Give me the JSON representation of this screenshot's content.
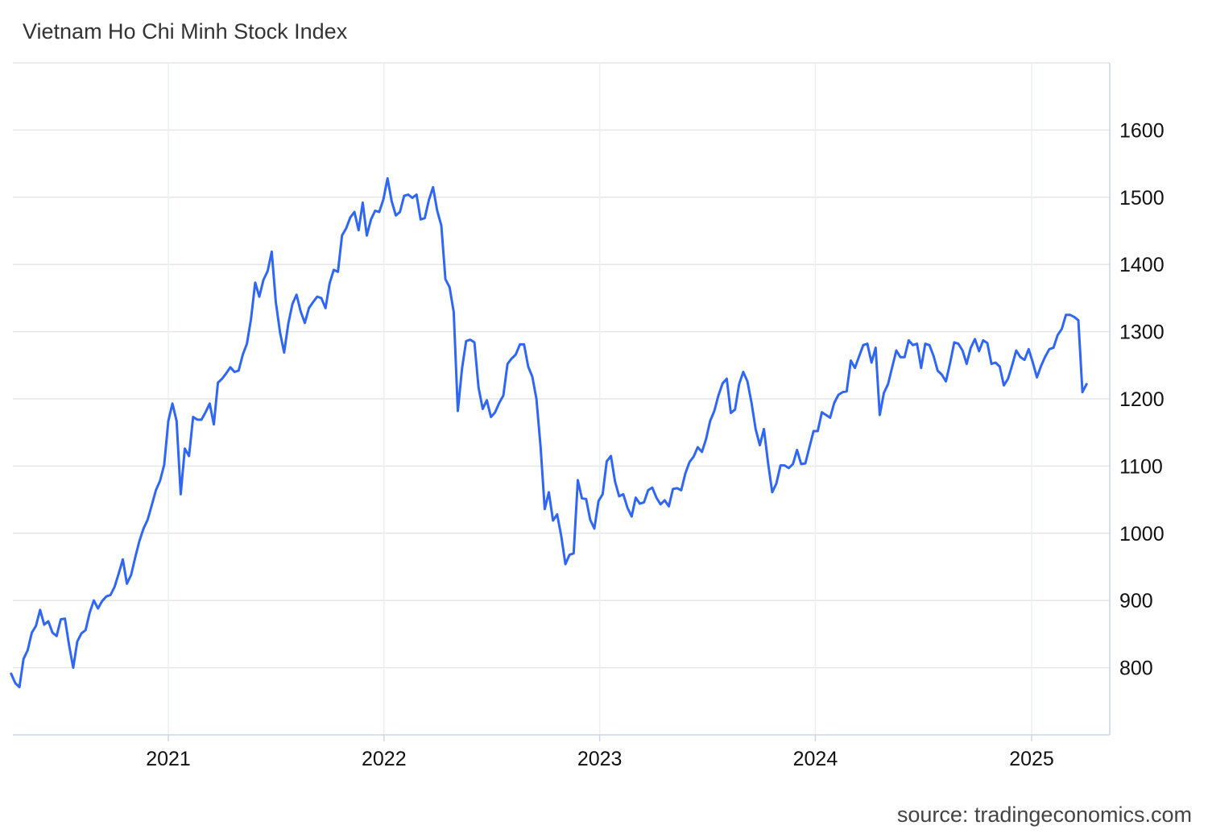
{
  "chart_data": {
    "type": "line",
    "title": "Vietnam Ho Chi Minh Stock Index",
    "source": "source: tradingeconomics.com",
    "xlabel": "",
    "ylabel": "",
    "ylim": [
      700,
      1700
    ],
    "xlim": [
      "2020-04-09",
      "2025-05-01"
    ],
    "y_axis_position": "right",
    "grid": true,
    "line_color": "#2f66f2",
    "y_ticks": [
      800,
      900,
      1000,
      1100,
      1200,
      1300,
      1400,
      1500,
      1600
    ],
    "y_tick_labels": [
      "800",
      "900",
      "1000",
      "1100",
      "1200",
      "1300",
      "1400",
      "1500",
      "1600"
    ],
    "x_ticks": [
      "2021-01-01",
      "2022-01-01",
      "2023-01-01",
      "2024-01-01",
      "2025-01-01"
    ],
    "x_tick_labels": [
      "2021",
      "2022",
      "2023",
      "2024",
      "2025"
    ],
    "series": [
      {
        "points": [
          [
            "2020-04-10",
            791
          ],
          [
            "2020-04-17",
            777
          ],
          [
            "2020-04-24",
            771
          ],
          [
            "2020-05-01",
            813
          ],
          [
            "2020-05-08",
            826
          ],
          [
            "2020-05-15",
            852
          ],
          [
            "2020-05-22",
            862
          ],
          [
            "2020-05-29",
            886
          ],
          [
            "2020-06-05",
            864
          ],
          [
            "2020-06-12",
            869
          ],
          [
            "2020-06-19",
            852
          ],
          [
            "2020-06-26",
            847
          ],
          [
            "2020-07-03",
            872
          ],
          [
            "2020-07-10",
            873
          ],
          [
            "2020-07-17",
            834
          ],
          [
            "2020-07-24",
            800
          ],
          [
            "2020-07-31",
            839
          ],
          [
            "2020-08-07",
            851
          ],
          [
            "2020-08-14",
            856
          ],
          [
            "2020-08-21",
            882
          ],
          [
            "2020-08-28",
            900
          ],
          [
            "2020-09-04",
            888
          ],
          [
            "2020-09-11",
            899
          ],
          [
            "2020-09-18",
            906
          ],
          [
            "2020-09-25",
            908
          ],
          [
            "2020-10-02",
            920
          ],
          [
            "2020-10-09",
            940
          ],
          [
            "2020-10-16",
            961
          ],
          [
            "2020-10-23",
            925
          ],
          [
            "2020-10-30",
            938
          ],
          [
            "2020-11-06",
            964
          ],
          [
            "2020-11-13",
            988
          ],
          [
            "2020-11-20",
            1007
          ],
          [
            "2020-11-27",
            1020
          ],
          [
            "2020-12-04",
            1042
          ],
          [
            "2020-12-11",
            1064
          ],
          [
            "2020-12-18",
            1078
          ],
          [
            "2020-12-25",
            1102
          ],
          [
            "2021-01-01",
            1167
          ],
          [
            "2021-01-08",
            1193
          ],
          [
            "2021-01-15",
            1167
          ],
          [
            "2021-01-22",
            1058
          ],
          [
            "2021-01-29",
            1126
          ],
          [
            "2021-02-05",
            1115
          ],
          [
            "2021-02-12",
            1173
          ],
          [
            "2021-02-19",
            1169
          ],
          [
            "2021-02-26",
            1169
          ],
          [
            "2021-03-05",
            1180
          ],
          [
            "2021-03-12",
            1193
          ],
          [
            "2021-03-19",
            1162
          ],
          [
            "2021-03-26",
            1224
          ],
          [
            "2021-04-02",
            1230
          ],
          [
            "2021-04-09",
            1238
          ],
          [
            "2021-04-16",
            1247
          ],
          [
            "2021-04-23",
            1240
          ],
          [
            "2021-04-30",
            1242
          ],
          [
            "2021-05-07",
            1266
          ],
          [
            "2021-05-14",
            1282
          ],
          [
            "2021-05-21",
            1319
          ],
          [
            "2021-05-28",
            1373
          ],
          [
            "2021-06-04",
            1352
          ],
          [
            "2021-06-11",
            1377
          ],
          [
            "2021-06-18",
            1390
          ],
          [
            "2021-06-25",
            1419
          ],
          [
            "2021-07-02",
            1344
          ],
          [
            "2021-07-09",
            1299
          ],
          [
            "2021-07-16",
            1269
          ],
          [
            "2021-07-23",
            1312
          ],
          [
            "2021-07-30",
            1341
          ],
          [
            "2021-08-06",
            1355
          ],
          [
            "2021-08-13",
            1330
          ],
          [
            "2021-08-20",
            1313
          ],
          [
            "2021-08-27",
            1335
          ],
          [
            "2021-09-03",
            1344
          ],
          [
            "2021-09-10",
            1352
          ],
          [
            "2021-09-17",
            1350
          ],
          [
            "2021-09-24",
            1335
          ],
          [
            "2021-10-01",
            1372
          ],
          [
            "2021-10-08",
            1392
          ],
          [
            "2021-10-15",
            1389
          ],
          [
            "2021-10-22",
            1443
          ],
          [
            "2021-10-29",
            1454
          ],
          [
            "2021-11-05",
            1470
          ],
          [
            "2021-11-12",
            1478
          ],
          [
            "2021-11-19",
            1451
          ],
          [
            "2021-11-26",
            1492
          ],
          [
            "2021-12-03",
            1443
          ],
          [
            "2021-12-10",
            1467
          ],
          [
            "2021-12-17",
            1480
          ],
          [
            "2021-12-24",
            1478
          ],
          [
            "2021-12-31",
            1497
          ],
          [
            "2022-01-07",
            1528
          ],
          [
            "2022-01-14",
            1494
          ],
          [
            "2022-01-21",
            1473
          ],
          [
            "2022-01-28",
            1478
          ],
          [
            "2022-02-04",
            1502
          ],
          [
            "2022-02-11",
            1504
          ],
          [
            "2022-02-18",
            1499
          ],
          [
            "2022-02-25",
            1504
          ],
          [
            "2022-03-04",
            1467
          ],
          [
            "2022-03-11",
            1469
          ],
          [
            "2022-03-18",
            1496
          ],
          [
            "2022-03-25",
            1515
          ],
          [
            "2022-04-01",
            1480
          ],
          [
            "2022-04-08",
            1458
          ],
          [
            "2022-04-15",
            1378
          ],
          [
            "2022-04-22",
            1366
          ],
          [
            "2022-04-29",
            1329
          ],
          [
            "2022-05-06",
            1182
          ],
          [
            "2022-05-13",
            1245
          ],
          [
            "2022-05-20",
            1286
          ],
          [
            "2022-05-27",
            1288
          ],
          [
            "2022-06-03",
            1284
          ],
          [
            "2022-06-10",
            1217
          ],
          [
            "2022-06-17",
            1185
          ],
          [
            "2022-06-24",
            1198
          ],
          [
            "2022-07-01",
            1173
          ],
          [
            "2022-07-08",
            1180
          ],
          [
            "2022-07-15",
            1194
          ],
          [
            "2022-07-22",
            1205
          ],
          [
            "2022-07-29",
            1252
          ],
          [
            "2022-08-05",
            1260
          ],
          [
            "2022-08-12",
            1266
          ],
          [
            "2022-08-19",
            1281
          ],
          [
            "2022-08-26",
            1281
          ],
          [
            "2022-09-02",
            1248
          ],
          [
            "2022-09-09",
            1233
          ],
          [
            "2022-09-16",
            1200
          ],
          [
            "2022-09-23",
            1128
          ],
          [
            "2022-09-30",
            1036
          ],
          [
            "2022-10-07",
            1061
          ],
          [
            "2022-10-14",
            1019
          ],
          [
            "2022-10-21",
            1028
          ],
          [
            "2022-10-28",
            996
          ],
          [
            "2022-11-04",
            954
          ],
          [
            "2022-11-11",
            968
          ],
          [
            "2022-11-18",
            970
          ],
          [
            "2022-11-25",
            1079
          ],
          [
            "2022-12-02",
            1052
          ],
          [
            "2022-12-09",
            1051
          ],
          [
            "2022-12-16",
            1020
          ],
          [
            "2022-12-23",
            1007
          ],
          [
            "2022-12-30",
            1048
          ],
          [
            "2023-01-06",
            1058
          ],
          [
            "2023-01-13",
            1107
          ],
          [
            "2023-01-20",
            1115
          ],
          [
            "2023-01-27",
            1077
          ],
          [
            "2023-02-03",
            1055
          ],
          [
            "2023-02-10",
            1058
          ],
          [
            "2023-02-17",
            1038
          ],
          [
            "2023-02-24",
            1025
          ],
          [
            "2023-03-03",
            1053
          ],
          [
            "2023-03-10",
            1044
          ],
          [
            "2023-03-17",
            1046
          ],
          [
            "2023-03-24",
            1064
          ],
          [
            "2023-03-31",
            1068
          ],
          [
            "2023-04-07",
            1053
          ],
          [
            "2023-04-14",
            1043
          ],
          [
            "2023-04-21",
            1049
          ],
          [
            "2023-04-28",
            1040
          ],
          [
            "2023-05-05",
            1066
          ],
          [
            "2023-05-12",
            1067
          ],
          [
            "2023-05-19",
            1064
          ],
          [
            "2023-05-26",
            1089
          ],
          [
            "2023-06-02",
            1106
          ],
          [
            "2023-06-09",
            1114
          ],
          [
            "2023-06-16",
            1128
          ],
          [
            "2023-06-23",
            1121
          ],
          [
            "2023-06-30",
            1140
          ],
          [
            "2023-07-07",
            1167
          ],
          [
            "2023-07-14",
            1182
          ],
          [
            "2023-07-21",
            1205
          ],
          [
            "2023-07-28",
            1223
          ],
          [
            "2023-08-04",
            1230
          ],
          [
            "2023-08-11",
            1179
          ],
          [
            "2023-08-18",
            1184
          ],
          [
            "2023-08-25",
            1222
          ],
          [
            "2023-09-01",
            1240
          ],
          [
            "2023-09-08",
            1226
          ],
          [
            "2023-09-15",
            1194
          ],
          [
            "2023-09-22",
            1155
          ],
          [
            "2023-09-29",
            1131
          ],
          [
            "2023-10-06",
            1155
          ],
          [
            "2023-10-13",
            1104
          ],
          [
            "2023-10-20",
            1061
          ],
          [
            "2023-10-27",
            1074
          ],
          [
            "2023-11-03",
            1101
          ],
          [
            "2023-11-10",
            1101
          ],
          [
            "2023-11-17",
            1097
          ],
          [
            "2023-11-24",
            1103
          ],
          [
            "2023-12-01",
            1124
          ],
          [
            "2023-12-08",
            1103
          ],
          [
            "2023-12-15",
            1104
          ],
          [
            "2023-12-22",
            1128
          ],
          [
            "2023-12-29",
            1152
          ],
          [
            "2024-01-05",
            1152
          ],
          [
            "2024-01-12",
            1180
          ],
          [
            "2024-01-19",
            1176
          ],
          [
            "2024-01-26",
            1172
          ],
          [
            "2024-02-02",
            1194
          ],
          [
            "2024-02-09",
            1206
          ],
          [
            "2024-02-16",
            1210
          ],
          [
            "2024-02-23",
            1211
          ],
          [
            "2024-03-01",
            1257
          ],
          [
            "2024-03-08",
            1246
          ],
          [
            "2024-03-15",
            1263
          ],
          [
            "2024-03-22",
            1280
          ],
          [
            "2024-03-29",
            1282
          ],
          [
            "2024-04-05",
            1254
          ],
          [
            "2024-04-12",
            1276
          ],
          [
            "2024-04-19",
            1176
          ],
          [
            "2024-04-26",
            1209
          ],
          [
            "2024-05-03",
            1222
          ],
          [
            "2024-05-10",
            1247
          ],
          [
            "2024-05-17",
            1272
          ],
          [
            "2024-05-24",
            1262
          ],
          [
            "2024-05-31",
            1262
          ],
          [
            "2024-06-07",
            1287
          ],
          [
            "2024-06-14",
            1280
          ],
          [
            "2024-06-21",
            1282
          ],
          [
            "2024-06-28",
            1246
          ],
          [
            "2024-07-05",
            1282
          ],
          [
            "2024-07-12",
            1280
          ],
          [
            "2024-07-19",
            1264
          ],
          [
            "2024-07-26",
            1242
          ],
          [
            "2024-08-02",
            1236
          ],
          [
            "2024-08-09",
            1226
          ],
          [
            "2024-08-16",
            1253
          ],
          [
            "2024-08-23",
            1284
          ],
          [
            "2024-08-30",
            1282
          ],
          [
            "2024-09-06",
            1272
          ],
          [
            "2024-09-13",
            1252
          ],
          [
            "2024-09-20",
            1276
          ],
          [
            "2024-09-27",
            1289
          ],
          [
            "2024-10-04",
            1271
          ],
          [
            "2024-10-11",
            1287
          ],
          [
            "2024-10-18",
            1283
          ],
          [
            "2024-10-25",
            1252
          ],
          [
            "2024-11-01",
            1254
          ],
          [
            "2024-11-08",
            1248
          ],
          [
            "2024-11-15",
            1220
          ],
          [
            "2024-11-22",
            1230
          ],
          [
            "2024-11-29",
            1250
          ],
          [
            "2024-12-06",
            1272
          ],
          [
            "2024-12-13",
            1262
          ],
          [
            "2024-12-20",
            1258
          ],
          [
            "2024-12-27",
            1274
          ],
          [
            "2025-01-03",
            1254
          ],
          [
            "2025-01-10",
            1232
          ],
          [
            "2025-01-17",
            1249
          ],
          [
            "2025-01-24",
            1263
          ],
          [
            "2025-01-31",
            1274
          ],
          [
            "2025-02-07",
            1276
          ],
          [
            "2025-02-14",
            1295
          ],
          [
            "2025-02-21",
            1304
          ],
          [
            "2025-02-28",
            1325
          ],
          [
            "2025-03-07",
            1325
          ],
          [
            "2025-03-14",
            1322
          ],
          [
            "2025-03-21",
            1317
          ],
          [
            "2025-03-28",
            1210
          ],
          [
            "2025-04-04",
            1222
          ]
        ]
      }
    ]
  }
}
